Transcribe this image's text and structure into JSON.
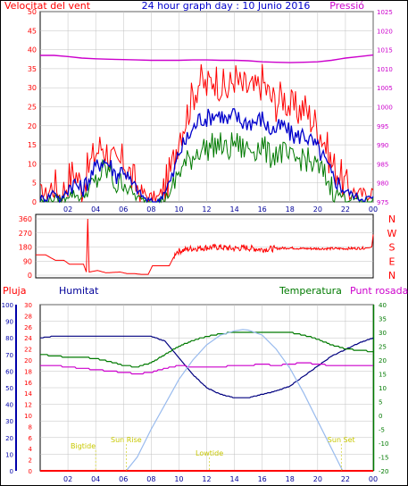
{
  "colors": {
    "red": "#ff0000",
    "blue": "#0000cc",
    "green": "#007a00",
    "magenta": "#cc00cc",
    "navy": "#000080",
    "yellow": "#c8c800",
    "sunline": "#99bbee",
    "grid": "#c0c0c0"
  },
  "chart_data": [
    {
      "type": "line",
      "title": "24 hour graph day : 10 Junio 2016",
      "ylabel_left": "Velocitat del vent",
      "ylabel_right": "Pressió",
      "x_ticks": [
        "02",
        "04",
        "06",
        "08",
        "10",
        "12",
        "14",
        "16",
        "18",
        "20",
        "22",
        "00"
      ],
      "x_range_hours": [
        0,
        24
      ],
      "ylim_left": [
        0,
        50
      ],
      "y_ticks_left": [
        "0",
        "5",
        "10",
        "15",
        "20",
        "25",
        "30",
        "35",
        "40",
        "45",
        "50"
      ],
      "ylim_right": [
        975,
        1025
      ],
      "y_ticks_right": [
        "975",
        "980",
        "985",
        "990",
        "995",
        "1000",
        "1005",
        "1010",
        "1015",
        "1020",
        "1025"
      ],
      "grid": true,
      "series": [
        {
          "name": "gust",
          "axis": "left",
          "color": "red",
          "x": [
            0,
            0.5,
            1,
            1.5,
            2,
            2.5,
            3,
            3.5,
            4,
            4.5,
            5,
            5.5,
            6,
            6.5,
            7,
            7.5,
            8,
            8.5,
            9,
            9.5,
            10,
            10.5,
            11,
            11.5,
            12,
            12.5,
            13,
            13.5,
            14,
            14.5,
            15,
            15.5,
            16,
            16.5,
            17,
            17.5,
            18,
            18.5,
            19,
            19.5,
            20,
            20.5,
            21,
            21.5,
            22,
            22.5,
            23,
            23.5,
            24
          ],
          "values": [
            3,
            2,
            5,
            1,
            6,
            8,
            4,
            9,
            13,
            15,
            12,
            9,
            11,
            7,
            4,
            2,
            1,
            1,
            4,
            9,
            18,
            22,
            28,
            32,
            30,
            33,
            31,
            29,
            33,
            30,
            30,
            29,
            32,
            28,
            26,
            28,
            25,
            24,
            25,
            22,
            20,
            16,
            10,
            8,
            4,
            3,
            2,
            2,
            3
          ]
        },
        {
          "name": "average",
          "axis": "left",
          "color": "blue",
          "x": [
            0,
            0.5,
            1,
            1.5,
            2,
            2.5,
            3,
            3.5,
            4,
            4.5,
            5,
            5.5,
            6,
            6.5,
            7,
            7.5,
            8,
            8.5,
            9,
            9.5,
            10,
            10.5,
            11,
            11.5,
            12,
            12.5,
            13,
            13.5,
            14,
            14.5,
            15,
            15.5,
            16,
            16.5,
            17,
            17.5,
            18,
            18.5,
            19,
            19.5,
            20,
            20.5,
            21,
            21.5,
            22,
            22.5,
            23,
            23.5,
            24
          ],
          "values": [
            1,
            1,
            3,
            0,
            4,
            5,
            3,
            6,
            9,
            11,
            10,
            7,
            9,
            5,
            3,
            1,
            0,
            0,
            3,
            6,
            13,
            16,
            19,
            22,
            22,
            23,
            23,
            21,
            23,
            21,
            21,
            21,
            22,
            19,
            19,
            20,
            18,
            17,
            18,
            16,
            14,
            11,
            7,
            5,
            3,
            2,
            1,
            1,
            1
          ]
        },
        {
          "name": "low",
          "axis": "left",
          "color": "green",
          "x": [
            0,
            0.5,
            1,
            1.5,
            2,
            2.5,
            3,
            3.5,
            4,
            4.5,
            5,
            5.5,
            6,
            6.5,
            7,
            7.5,
            8,
            8.5,
            9,
            9.5,
            10,
            10.5,
            11,
            11.5,
            12,
            12.5,
            13,
            13.5,
            14,
            14.5,
            15,
            15.5,
            16,
            16.5,
            17,
            17.5,
            18,
            18.5,
            19,
            19.5,
            20,
            20.5,
            21,
            21.5,
            22,
            22.5,
            23,
            23.5,
            24
          ],
          "values": [
            0,
            0,
            1,
            0,
            2,
            2,
            1,
            3,
            5,
            8,
            8,
            4,
            6,
            3,
            1,
            0,
            0,
            0,
            1,
            3,
            8,
            10,
            12,
            14,
            14,
            15,
            15,
            13,
            16,
            14,
            14,
            14,
            15,
            12,
            13,
            13,
            11,
            11,
            12,
            10,
            9,
            7,
            4,
            2,
            1,
            1,
            0,
            0,
            0
          ]
        },
        {
          "name": "pressure",
          "axis": "right",
          "color": "magenta",
          "x": [
            0,
            1,
            2,
            3,
            4,
            5,
            6,
            7,
            8,
            9,
            10,
            11,
            12,
            13,
            14,
            15,
            16,
            17,
            18,
            19,
            20,
            21,
            22,
            23,
            24
          ],
          "values": [
            1013.5,
            1013.5,
            1013.2,
            1012.8,
            1012.6,
            1012.5,
            1012.4,
            1012.3,
            1012.2,
            1012.2,
            1012.2,
            1012.3,
            1012.3,
            1012.2,
            1012.2,
            1012.1,
            1011.8,
            1011.7,
            1011.6,
            1011.7,
            1011.8,
            1012.2,
            1012.8,
            1013.2,
            1013.6
          ]
        }
      ]
    },
    {
      "type": "line",
      "ylim": [
        0,
        360
      ],
      "y_ticks": [
        "0",
        "90",
        "180",
        "270",
        "360"
      ],
      "compass_labels": [
        "N",
        "W",
        "S",
        "E",
        "N"
      ],
      "series": [
        {
          "name": "direction",
          "color": "red",
          "x": [
            0,
            0.7,
            1.4,
            2,
            2.4,
            3,
            3.4,
            3.6,
            3.7,
            3.8,
            4.4,
            5,
            6,
            6.5,
            7,
            7.5,
            8,
            8.3,
            8.5,
            9,
            9.5,
            10,
            11,
            12,
            13,
            14,
            15,
            16,
            17,
            18,
            19,
            20,
            21,
            22,
            23,
            23.7,
            23.9,
            24
          ],
          "values": [
            130,
            130,
            95,
            95,
            70,
            70,
            70,
            20,
            360,
            20,
            30,
            15,
            20,
            10,
            10,
            5,
            5,
            60,
            60,
            60,
            60,
            150,
            170,
            175,
            180,
            170,
            175,
            165,
            170,
            175,
            170,
            170,
            170,
            170,
            172,
            175,
            180,
            260
          ]
        }
      ]
    },
    {
      "type": "line",
      "label_rain": "Pluja",
      "label_humidity": "Humitat",
      "label_temperature": "Temperatura",
      "label_dewpoint": "Punt rosada",
      "x_ticks": [
        "02",
        "04",
        "06",
        "08",
        "10",
        "12",
        "14",
        "16",
        "18",
        "20",
        "22",
        "00"
      ],
      "ylim_humidity": [
        0,
        100
      ],
      "y_ticks_humidity": [
        "0",
        "10",
        "20",
        "30",
        "40",
        "50",
        "60",
        "70",
        "80",
        "90",
        "100"
      ],
      "ylim_rain": [
        0,
        30
      ],
      "y_ticks_rain": [
        "0",
        "2",
        "4",
        "6",
        "8",
        "10",
        "12",
        "14",
        "16",
        "18",
        "20",
        "22",
        "24",
        "26",
        "28",
        "30"
      ],
      "ylim_temperature": [
        -20,
        40
      ],
      "y_ticks_temperature": [
        "-20",
        "-15",
        "-10",
        "-5",
        "0",
        "5",
        "10",
        "15",
        "20",
        "25",
        "30",
        "35",
        "40"
      ],
      "annotations": [
        "Sun Rise",
        "Sun Set",
        "Lowtide",
        "Bigtide"
      ],
      "series": [
        {
          "name": "humidity",
          "axis": "humidity",
          "color": "navy",
          "x": [
            0,
            1,
            2,
            3,
            4,
            5,
            6,
            7,
            8,
            9,
            10,
            11,
            12,
            13,
            14,
            15,
            16,
            17,
            18,
            19,
            20,
            21,
            22,
            23,
            24
          ],
          "values": [
            80,
            81,
            81,
            81,
            81,
            81,
            81,
            81,
            81,
            78,
            68,
            58,
            50,
            46,
            44,
            44,
            46,
            48,
            51,
            57,
            63,
            69,
            73,
            77,
            80
          ]
        },
        {
          "name": "temperature",
          "axis": "temperature",
          "color": "green",
          "x": [
            0,
            1,
            2,
            3,
            4,
            5,
            6,
            7,
            8,
            9,
            10,
            11,
            12,
            13,
            14,
            15,
            16,
            17,
            18,
            19,
            20,
            21,
            22,
            23,
            24
          ],
          "values": [
            22,
            21.5,
            21,
            21,
            20.5,
            19.5,
            18,
            17.5,
            19,
            22,
            25,
            27,
            28.5,
            29.5,
            30,
            30,
            30,
            30,
            30,
            29,
            27.5,
            25.5,
            24,
            23.5,
            23
          ]
        },
        {
          "name": "dewpoint",
          "axis": "temperature",
          "color": "magenta",
          "x": [
            0,
            1,
            2,
            3,
            4,
            5,
            6,
            7,
            8,
            9,
            10,
            11,
            12,
            13,
            14,
            15,
            16,
            17,
            18,
            19,
            20,
            21,
            22,
            23,
            24
          ],
          "values": [
            18,
            18,
            17.5,
            17,
            16.5,
            16,
            15.5,
            15,
            15.5,
            17,
            18,
            17.5,
            17.5,
            17.5,
            18,
            18,
            18.5,
            18,
            18.5,
            19,
            18.5,
            18,
            18,
            18,
            18
          ]
        },
        {
          "name": "solar",
          "axis": "temperature",
          "color": "sunline",
          "x": [
            6.2,
            7,
            8,
            9,
            10,
            11,
            12,
            13,
            14,
            14.6,
            15,
            16,
            17,
            18,
            19,
            20,
            21,
            21.8
          ],
          "values": [
            -20,
            -15,
            -5,
            4,
            13,
            20,
            25.5,
            29,
            30.5,
            31,
            30.8,
            29,
            24,
            17,
            8,
            -2,
            -12,
            -20
          ]
        },
        {
          "name": "rain",
          "axis": "rain",
          "color": "red",
          "x": [
            0,
            24
          ],
          "values": [
            0,
            0
          ]
        }
      ]
    }
  ]
}
